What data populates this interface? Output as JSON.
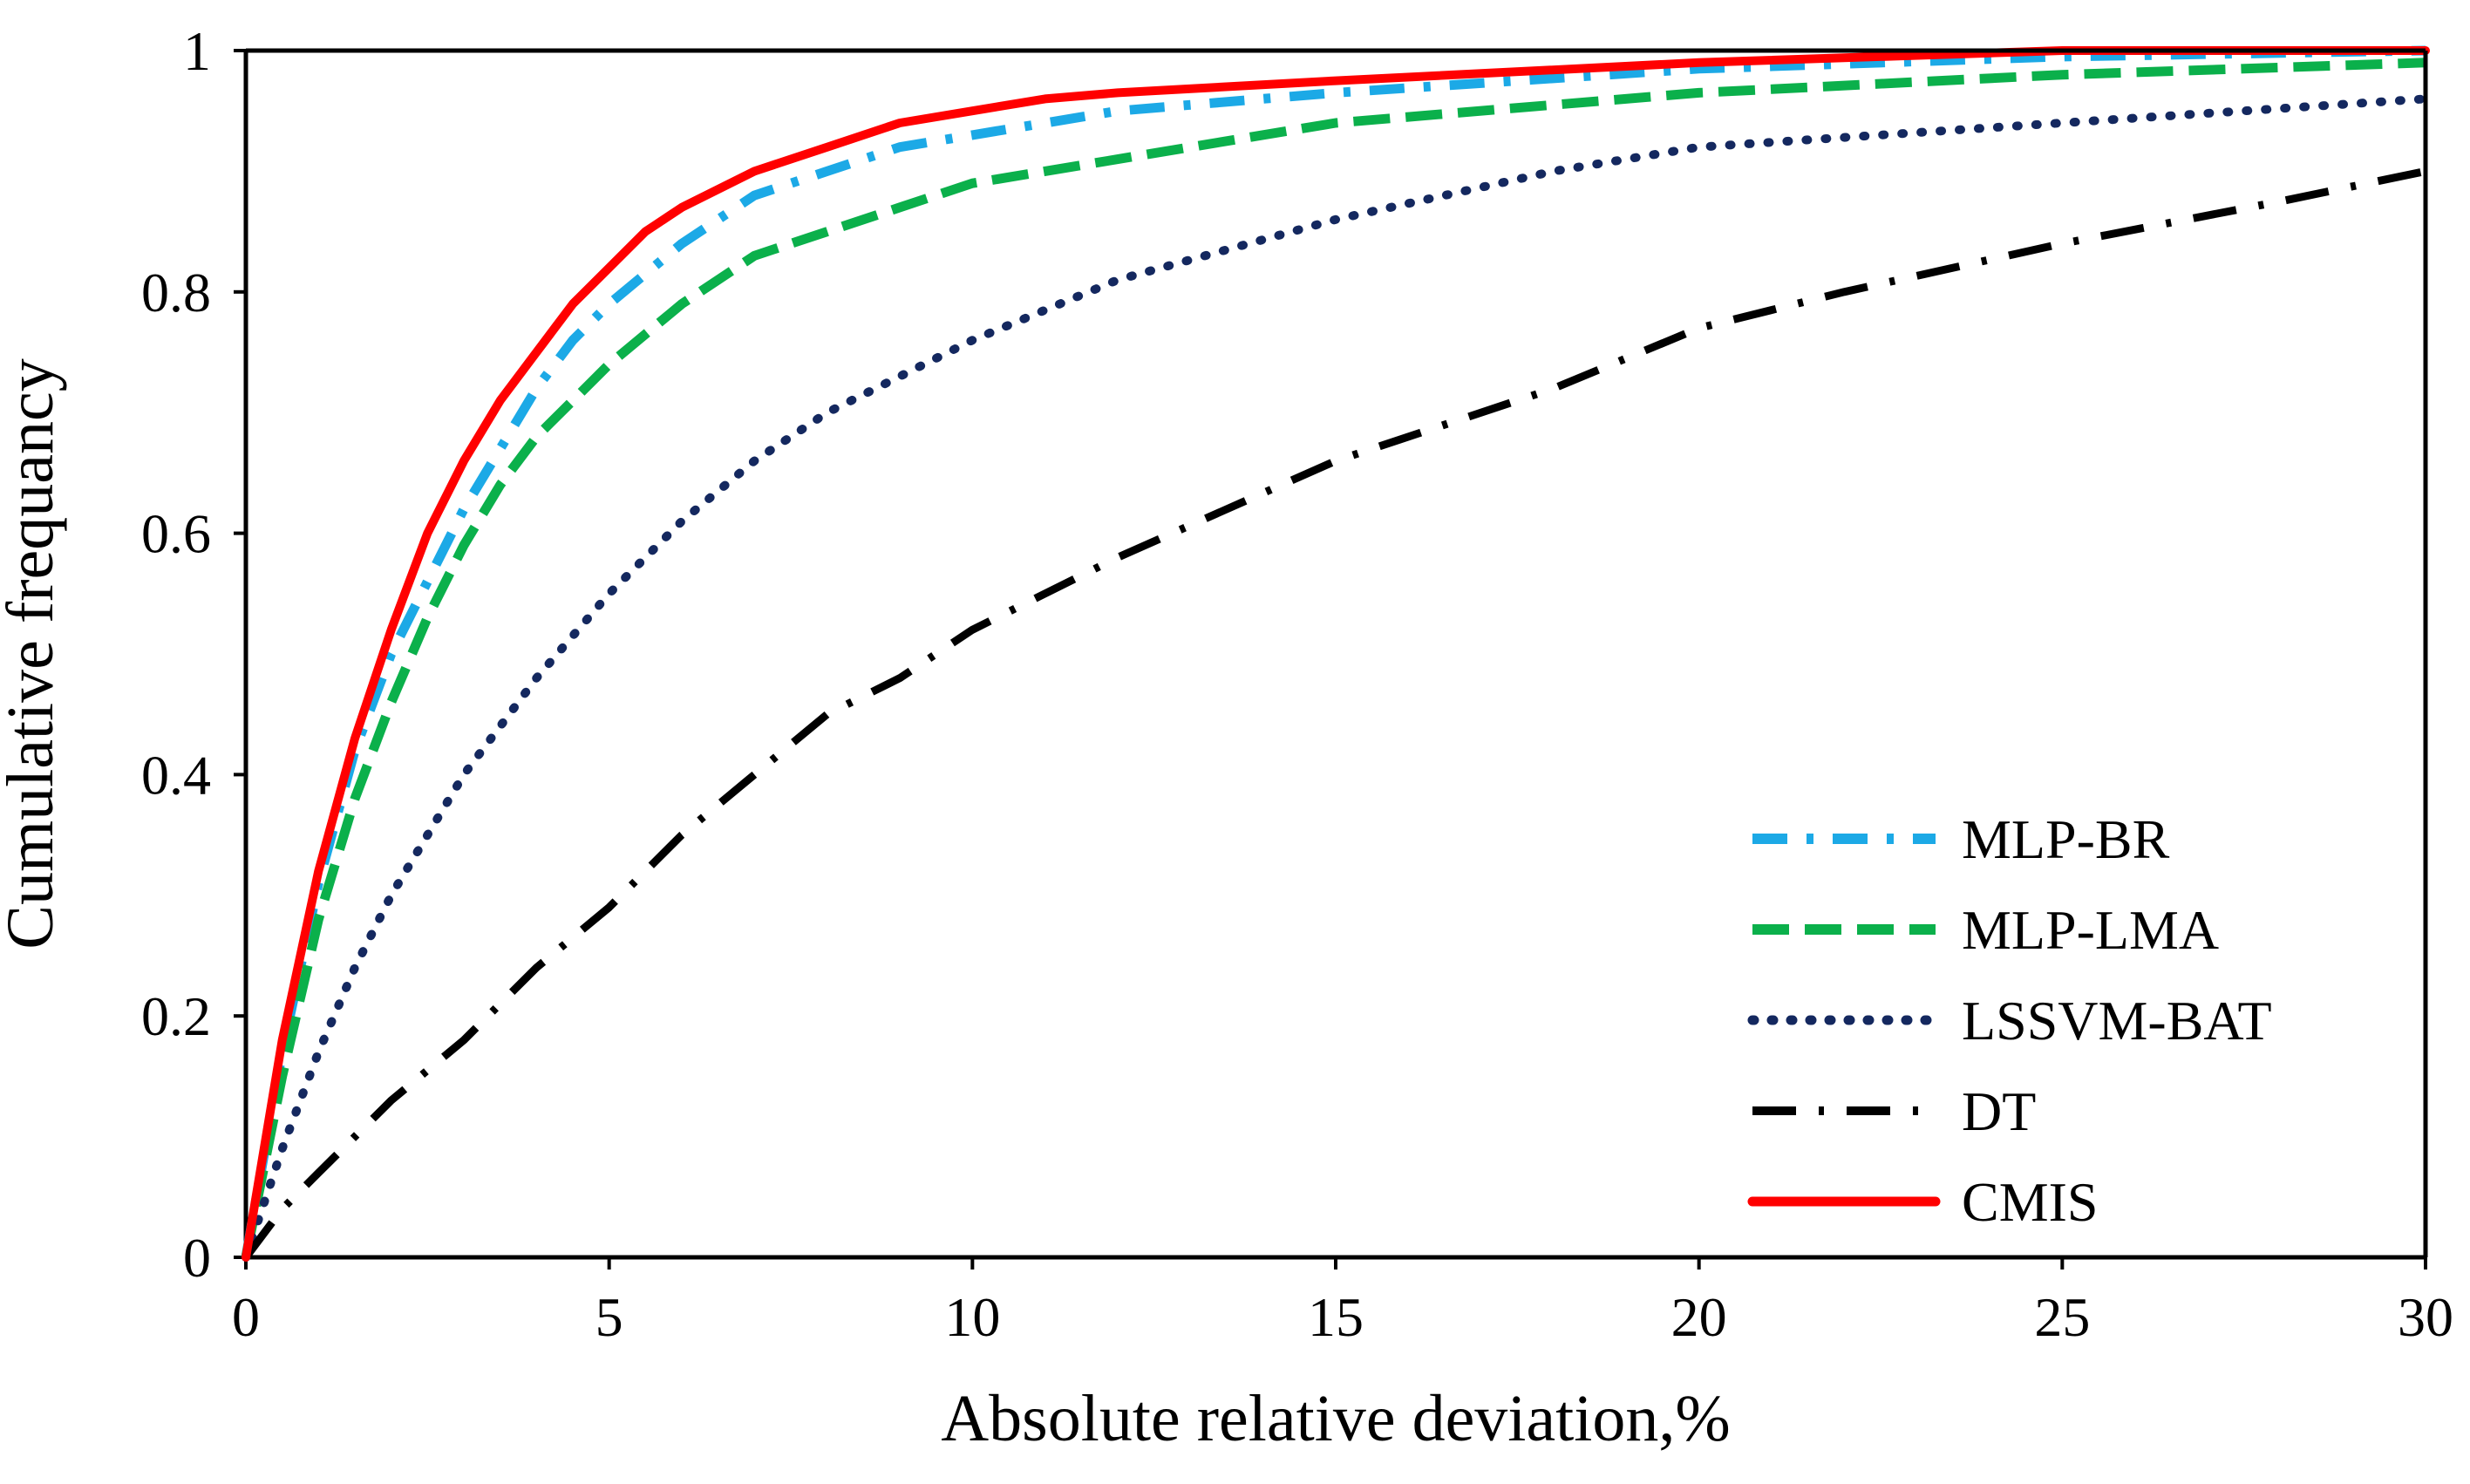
{
  "chart_data": {
    "type": "line",
    "title": "",
    "xlabel": "Absolute relative deviation,%",
    "ylabel": "Cumulative frequancy",
    "xlim": [
      0,
      30
    ],
    "ylim": [
      0,
      1
    ],
    "x_ticks": [
      0,
      5,
      10,
      15,
      20,
      25,
      30
    ],
    "x_tick_labels": [
      "0",
      "5",
      "10",
      "15",
      "20",
      "25",
      "30"
    ],
    "y_ticks": [
      0,
      0.2,
      0.4,
      0.6,
      0.8,
      1
    ],
    "y_tick_labels": [
      "0",
      "0.2",
      "0.4",
      "0.6",
      "0.8",
      "1"
    ],
    "grid": false,
    "legend_position": "bottom-right",
    "series": [
      {
        "name": "MLP-BR",
        "color": "#1ca9e6",
        "style": "dash-dot",
        "x": [
          0,
          0.5,
          1,
          1.5,
          2,
          2.5,
          3,
          3.5,
          4,
          4.5,
          5,
          6,
          7,
          8,
          9,
          10,
          12,
          15,
          20,
          25,
          30
        ],
        "y": [
          0,
          0.17,
          0.31,
          0.42,
          0.5,
          0.56,
          0.62,
          0.67,
          0.72,
          0.76,
          0.79,
          0.84,
          0.88,
          0.9,
          0.92,
          0.93,
          0.95,
          0.965,
          0.985,
          0.995,
          1.0
        ]
      },
      {
        "name": "MLP-LMA",
        "color": "#0bb04b",
        "style": "dashed",
        "x": [
          0,
          0.5,
          1,
          1.5,
          2,
          2.5,
          3,
          3.5,
          4,
          4.5,
          5,
          6,
          7,
          8,
          9,
          10,
          12,
          15,
          20,
          25,
          30
        ],
        "y": [
          0,
          0.15,
          0.28,
          0.38,
          0.46,
          0.53,
          0.59,
          0.64,
          0.68,
          0.71,
          0.74,
          0.79,
          0.83,
          0.85,
          0.87,
          0.89,
          0.91,
          0.94,
          0.965,
          0.98,
          0.99
        ]
      },
      {
        "name": "LSSVM-BAT",
        "color": "#14285f",
        "style": "dotted",
        "x": [
          0,
          0.5,
          1,
          1.5,
          2,
          3,
          4,
          5,
          6,
          7,
          8,
          10,
          12,
          15,
          18,
          20,
          25,
          30
        ],
        "y": [
          0,
          0.09,
          0.17,
          0.24,
          0.3,
          0.4,
          0.48,
          0.55,
          0.61,
          0.66,
          0.7,
          0.76,
          0.81,
          0.86,
          0.9,
          0.92,
          0.94,
          0.96
        ]
      },
      {
        "name": "DT",
        "color": "#000000",
        "style": "long-dash-dot",
        "x": [
          0,
          0.5,
          1,
          2,
          3,
          4,
          5,
          6,
          7,
          8,
          9,
          10,
          12,
          15,
          18,
          20,
          22,
          25,
          28,
          30
        ],
        "y": [
          0,
          0.04,
          0.07,
          0.13,
          0.18,
          0.24,
          0.29,
          0.35,
          0.4,
          0.45,
          0.48,
          0.52,
          0.58,
          0.66,
          0.72,
          0.77,
          0.8,
          0.84,
          0.875,
          0.9
        ]
      },
      {
        "name": "CMIS",
        "color": "#ff0000",
        "style": "solid",
        "x": [
          0,
          0.5,
          1,
          1.5,
          2,
          2.5,
          3,
          3.5,
          4,
          4.5,
          5,
          5.5,
          6,
          7,
          8,
          9,
          10,
          11,
          12,
          15,
          20,
          25,
          30
        ],
        "y": [
          0,
          0.18,
          0.32,
          0.43,
          0.52,
          0.6,
          0.66,
          0.71,
          0.75,
          0.79,
          0.82,
          0.85,
          0.87,
          0.9,
          0.92,
          0.94,
          0.95,
          0.96,
          0.965,
          0.975,
          0.99,
          1.0,
          1.0
        ]
      }
    ]
  }
}
